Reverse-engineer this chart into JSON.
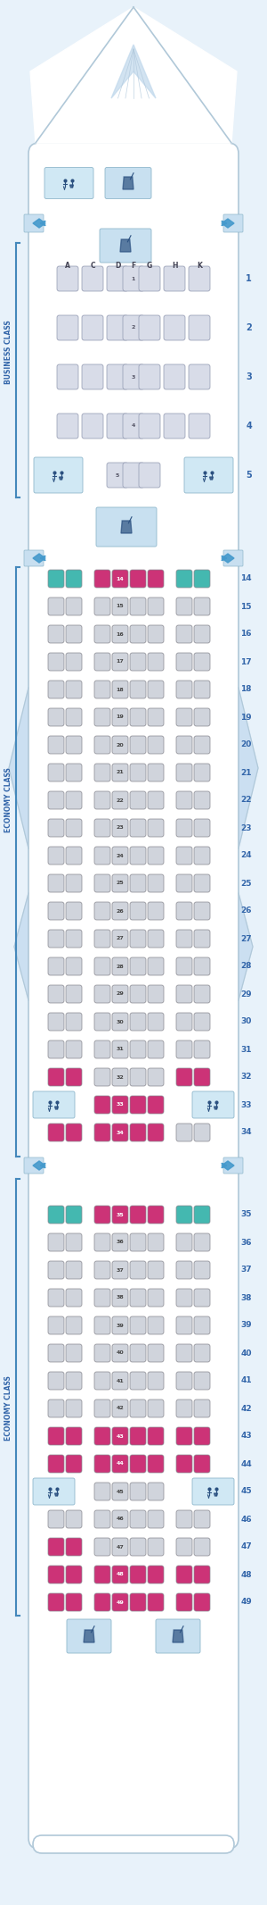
{
  "bg_color": "#e8f2fa",
  "fuselage_fill": "#ffffff",
  "fuselage_edge": "#b0c8d8",
  "nose_fill": "#d8eaf8",
  "door_color": "#4499cc",
  "seat_biz_fill": "#d8dce8",
  "seat_biz_edge": "#9098b0",
  "seat_eco_fill": "#d0d4dc",
  "seat_eco_edge": "#909098",
  "seat_pink": "#cc3377",
  "seat_teal": "#44b8b0",
  "lav_fill": "#d0e8f4",
  "lav_edge": "#90b8cc",
  "galley_fill": "#c8e0f0",
  "galley_edge": "#90b8cc",
  "class_text_color": "#3366aa",
  "row_text_color": "#3366aa",
  "col_label_color": "#ffffff",
  "line_color": "#4488bb",
  "biz_rows": [
    1,
    2,
    3,
    4,
    5
  ],
  "eco1_rows": [
    14,
    15,
    16,
    17,
    18,
    19,
    20,
    21,
    22,
    23,
    24,
    25,
    26,
    27,
    28,
    29,
    30,
    31,
    32,
    33,
    34
  ],
  "eco2_rows": [
    35,
    36,
    37,
    38,
    39,
    40,
    41,
    42,
    43,
    44,
    45,
    46,
    47,
    48,
    49
  ]
}
